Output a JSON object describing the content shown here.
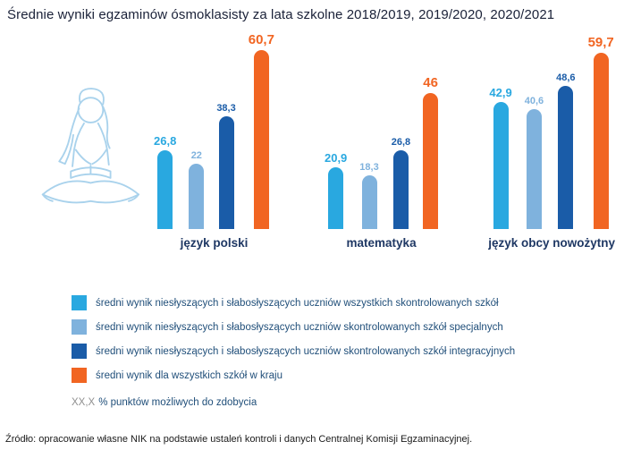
{
  "title": "Średnie wyniki egzaminów ósmoklasisty za lata szkolne 2018/2019, 2019/2020, 2020/2021",
  "chart_data": {
    "type": "bar",
    "categories": [
      "język polski",
      "matematyka",
      "język obcy nowożytny"
    ],
    "series": [
      {
        "name": "średni wynik niesłyszących i słabosłyszących uczniów wszystkich skontrolowanych szkół",
        "color": "#29a8e0",
        "values": [
          26.8,
          20.9,
          42.9
        ],
        "display_values": [
          "26,8",
          "20,9",
          "42,9"
        ]
      },
      {
        "name": "średni wynik niesłyszących i słabosłyszących uczniów skontrolowanych szkół specjalnych",
        "color": "#7fb2dd",
        "values": [
          22,
          18.3,
          40.6
        ],
        "display_values": [
          "22",
          "18,3",
          "40,6"
        ]
      },
      {
        "name": "średni wynik niesłyszących i słabosłyszących uczniów skontrolowanych szkół integracyjnych",
        "color": "#1a5ca8",
        "values": [
          38.3,
          26.8,
          48.6
        ],
        "display_values": [
          "38,3",
          "26,8",
          "48,6"
        ]
      },
      {
        "name": "średni wynik dla wszystkich szkół w kraju",
        "color": "#f16522",
        "values": [
          60.7,
          46,
          59.7
        ],
        "display_values": [
          "60,7",
          "46",
          "59,7"
        ]
      }
    ],
    "ylim": [
      0,
      65
    ],
    "legend_position": "bottom",
    "grid": false,
    "note": {
      "symbol": "XX,X",
      "text": "% punktów możliwych do zdobycia"
    }
  },
  "footer": "Źródło: opracowanie własne NIK na podstawie ustaleń kontroli i danych Centralnej Komisji Egzaminacyjnej."
}
